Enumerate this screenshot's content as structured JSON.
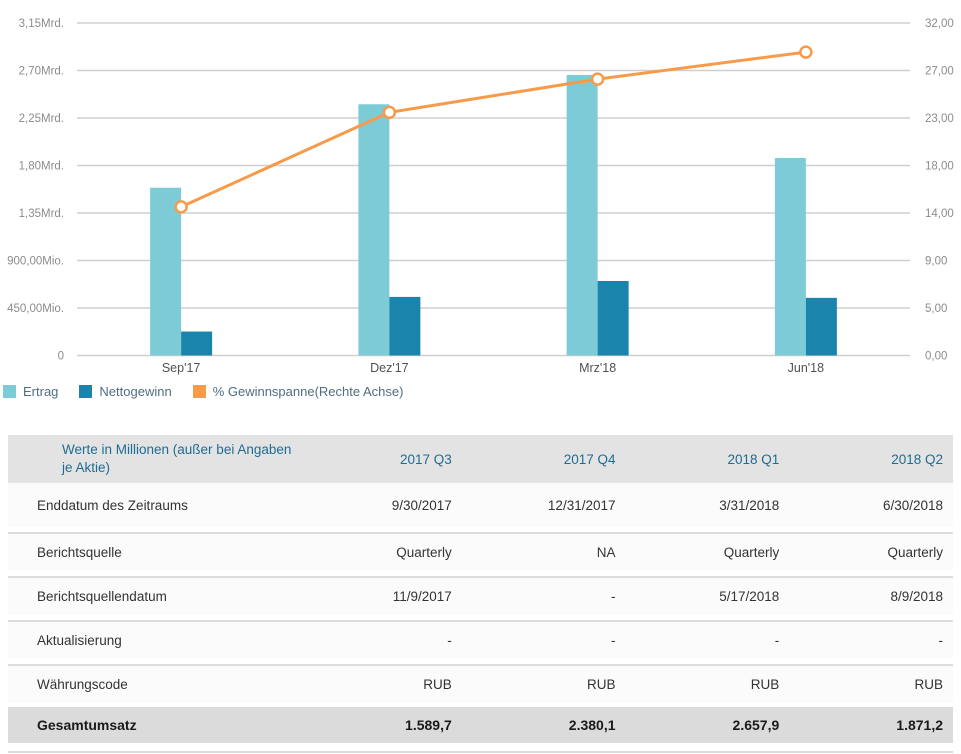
{
  "chart_data": {
    "type": "combo",
    "categories": [
      "Sep'17",
      "Dez'17",
      "Mrz'18",
      "Jun'18"
    ],
    "series": [
      {
        "name": "Ertrag",
        "type": "bar",
        "axis": "left",
        "unit": "Mio",
        "values": [
          1589.7,
          2380.1,
          2657.9,
          1871.2
        ],
        "color": "#7ecbd8"
      },
      {
        "name": "Nettogewinn",
        "type": "bar",
        "axis": "left",
        "unit": "Mio",
        "values": [
          227,
          555,
          706,
          546
        ],
        "color": "#1b84ad"
      },
      {
        "name": "% Gewinnspanne(Rechte Achse)",
        "type": "line",
        "axis": "right",
        "unit": "%",
        "values": [
          14.3,
          23.4,
          26.6,
          29.2
        ],
        "color": "#f79b4b"
      }
    ],
    "left_axis": {
      "min": 0,
      "max_mio": 3150,
      "ticks_top_to_bottom": [
        "3,15Mrd.",
        "2,70Mrd.",
        "2,25Mrd.",
        "1,80Mrd.",
        "1,35Mrd.",
        "900,00Mio.",
        "450,00Mio.",
        "0"
      ]
    },
    "right_axis": {
      "min": 0,
      "max": 32,
      "ticks_top_to_bottom": [
        "32,00",
        "27,00",
        "23,00",
        "18,00",
        "14,00",
        "9,00",
        "5,00",
        "0,00"
      ]
    },
    "grid": true,
    "legend_position": "bottom-left",
    "colors": {
      "gridline": "#cfcfcf",
      "left_tick_text": "#8c8c8c",
      "right_tick_text": "#8c8c8c",
      "x_tick_text": "#515151",
      "marker_fill": "#ffffff"
    }
  },
  "legend": {
    "items": [
      {
        "label": "Ertrag",
        "color": "#7ecbd8"
      },
      {
        "label": "Nettogewinn",
        "color": "#1b84ad"
      },
      {
        "label": "% Gewinnspanne(Rechte Achse)",
        "color": "#f79b4b"
      }
    ]
  },
  "table": {
    "header": {
      "label": "Werte in Millionen (außer bei Angaben je Aktie)",
      "columns": [
        "2017 Q3",
        "2017 Q4",
        "2018 Q1",
        "2018 Q2"
      ]
    },
    "rows": [
      {
        "label": "Enddatum des Zeitraums",
        "values": [
          "9/30/2017",
          "12/31/2017",
          "3/31/2018",
          "6/30/2018"
        ]
      },
      {
        "label": "Berichtsquelle",
        "values": [
          "Quarterly",
          "NA",
          "Quarterly",
          "Quarterly"
        ]
      },
      {
        "label": "Berichtsquellendatum",
        "values": [
          "11/9/2017",
          "-",
          "5/17/2018",
          "8/9/2018"
        ]
      },
      {
        "label": "Aktualisierung",
        "values": [
          "-",
          "-",
          "-",
          "-"
        ]
      },
      {
        "label": "Währungscode",
        "values": [
          "RUB",
          "RUB",
          "RUB",
          "RUB"
        ]
      }
    ],
    "total_row": {
      "label": "Gesamtumsatz",
      "values": [
        "1.589,7",
        "2.380,1",
        "2.657,9",
        "1.871,2"
      ]
    }
  }
}
